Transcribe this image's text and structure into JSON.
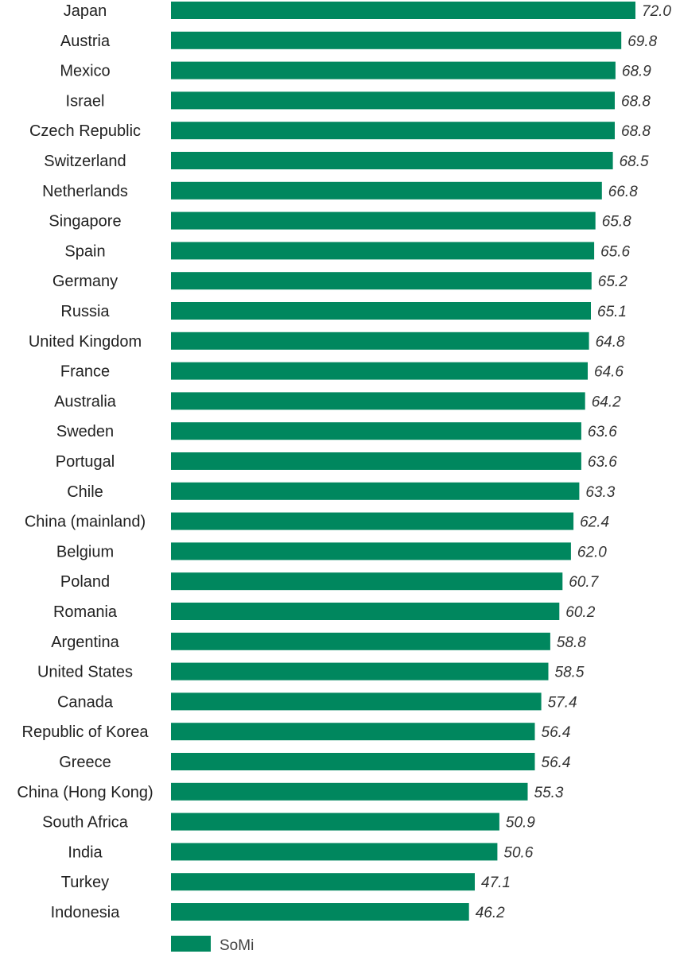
{
  "chart_data": {
    "type": "bar",
    "orientation": "horizontal",
    "categories": [
      "Japan",
      "Austria",
      "Mexico",
      "Israel",
      "Czech Republic",
      "Switzerland",
      "Netherlands",
      "Singapore",
      "Spain",
      "Germany",
      "Russia",
      "United Kingdom",
      "France",
      "Australia",
      "Sweden",
      "Portugal",
      "Chile",
      "China (mainland)",
      "Belgium",
      "Poland",
      "Romania",
      "Argentina",
      "United States",
      "Canada",
      "Republic of Korea",
      "Greece",
      "China (Hong Kong)",
      "South Africa",
      "India",
      "Turkey",
      "Indonesia"
    ],
    "series": [
      {
        "name": "SoMi",
        "values": [
          72.0,
          69.8,
          68.9,
          68.8,
          68.8,
          68.5,
          66.8,
          65.8,
          65.6,
          65.2,
          65.1,
          64.8,
          64.6,
          64.2,
          63.6,
          63.6,
          63.3,
          62.4,
          62.0,
          60.7,
          60.2,
          58.8,
          58.5,
          57.4,
          56.4,
          56.4,
          55.3,
          50.9,
          50.6,
          47.1,
          46.2
        ],
        "value_labels": [
          "72.0",
          "69.8",
          "68.9",
          "68.8",
          "68.8",
          "68.5",
          "66.8",
          "65.8",
          "65.6",
          "65.2",
          "65.1",
          "64.8",
          "64.6",
          "64.2",
          "63.6",
          "63.6",
          "63.3",
          "62.4",
          "62.0",
          "60.7",
          "60.2",
          "58.8",
          "58.5",
          "57.4",
          "56.4",
          "56.4",
          "55.3",
          "50.9",
          "50.6",
          "47.1",
          "46.2"
        ],
        "color": "#00875e"
      }
    ],
    "xlim": [
      0,
      72
    ],
    "grid": false,
    "legend": "bottom-left",
    "title": "",
    "xlabel": "",
    "ylabel": ""
  }
}
